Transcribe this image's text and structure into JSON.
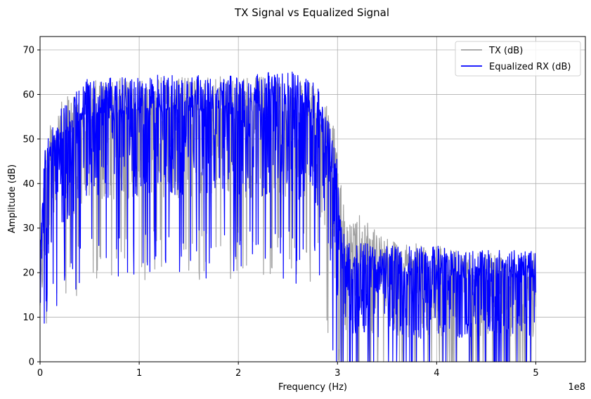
{
  "chart_data": {
    "type": "line",
    "title": "TX Signal vs Equalized Signal",
    "xlabel": "Frequency (Hz)",
    "ylabel": "Amplitude (dB)",
    "x_offset_text": "1e8",
    "xlim": [
      0,
      550000000.0
    ],
    "ylim": [
      0,
      73
    ],
    "x_ticks": [
      0,
      100000000.0,
      200000000.0,
      300000000.0,
      400000000.0,
      500000000.0
    ],
    "x_tick_labels": [
      "0",
      "1",
      "2",
      "3",
      "4",
      "5"
    ],
    "y_ticks": [
      0,
      10,
      20,
      30,
      40,
      50,
      60,
      70
    ],
    "y_tick_labels": [
      "0",
      "10",
      "20",
      "30",
      "40",
      "50",
      "60",
      "70"
    ],
    "grid": true,
    "legend_position": "top-right",
    "series": [
      {
        "name": "TX (dB)",
        "color": "#a0a0a0",
        "envelope": {
          "x": [
            0,
            5000000.0,
            10000000.0,
            20000000.0,
            30000000.0,
            50000000.0,
            100000000.0,
            150000000.0,
            200000000.0,
            250000000.0,
            280000000.0,
            290000000.0,
            300000000.0,
            305000000.0,
            310000000.0,
            320000000.0,
            340000000.0,
            360000000.0,
            400000000.0,
            450000000.0,
            500000000.0
          ],
          "upper": [
            25,
            50,
            53,
            58,
            60,
            63,
            64,
            64,
            64,
            64,
            62,
            57,
            50,
            37,
            30,
            34,
            30,
            27,
            26,
            25,
            25
          ],
          "lower": [
            5,
            12,
            20,
            22,
            25,
            28,
            30,
            30,
            30,
            30,
            28,
            18,
            8,
            2,
            0,
            0,
            0,
            0,
            0,
            0,
            0
          ]
        }
      },
      {
        "name": "Equalized RX (dB)",
        "color": "#0000ff",
        "envelope": {
          "x": [
            0,
            5000000.0,
            10000000.0,
            20000000.0,
            30000000.0,
            50000000.0,
            100000000.0,
            150000000.0,
            200000000.0,
            250000000.0,
            280000000.0,
            290000000.0,
            300000000.0,
            305000000.0,
            310000000.0,
            320000000.0,
            340000000.0,
            360000000.0,
            400000000.0,
            450000000.0,
            500000000.0
          ],
          "upper": [
            30,
            48,
            52,
            57,
            60,
            64,
            64,
            65,
            64,
            66,
            62,
            56,
            45,
            30,
            27,
            27,
            26,
            26,
            26,
            25,
            25
          ],
          "lower": [
            3,
            12,
            20,
            22,
            26,
            30,
            30,
            30,
            30,
            30,
            28,
            18,
            5,
            0,
            0,
            0,
            0,
            0,
            0,
            0,
            0
          ]
        }
      }
    ]
  }
}
